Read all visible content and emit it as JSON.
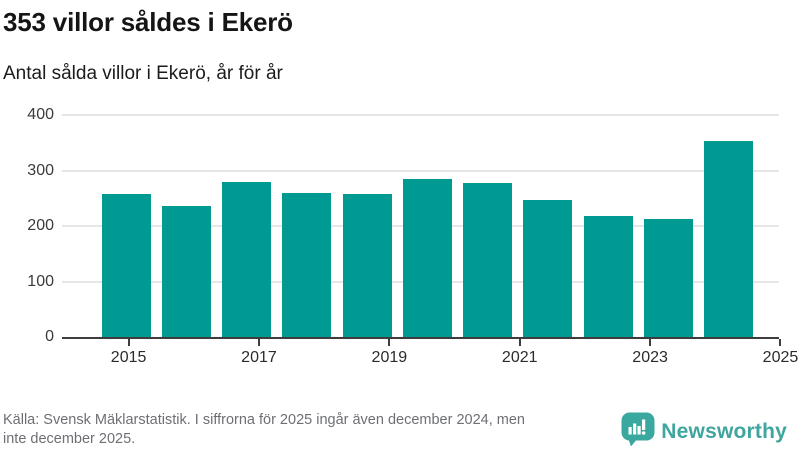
{
  "header": {
    "title": "353 villor såldes i Ekerö",
    "subtitle": "Antal sålda villor i Ekerö, år för år"
  },
  "chart_data": {
    "type": "bar",
    "categories": [
      "2015",
      "2016",
      "2017",
      "2018",
      "2019",
      "2020",
      "2021",
      "2022",
      "2023",
      "2024",
      "2025"
    ],
    "values": [
      257,
      236,
      280,
      260,
      258,
      284,
      277,
      247,
      218,
      213,
      353
    ],
    "title": "353 villor såldes i Ekerö",
    "subtitle": "Antal sålda villor i Ekerö, år för år",
    "xlabel": "",
    "ylabel": "",
    "ylim": [
      0,
      400
    ],
    "yticks": [
      0,
      100,
      200,
      300,
      400
    ],
    "xtick_labels": [
      "2015",
      "2017",
      "2019",
      "2021",
      "2023",
      "2025"
    ],
    "bar_color": "#009a92",
    "grid": true,
    "legend_position": "none"
  },
  "footer": {
    "source_lines": [
      "Källa: Svensk Mäklarstatistik. I siffrorna för 2025 ingår även december 2024, men",
      "inte december 2025."
    ]
  },
  "branding": {
    "logo_text": "Newsworthy",
    "logo_icon": "speech-bubble-bar-chart-icon",
    "logo_color": "#3fa59e",
    "logo_bubble_color": "#3ba89f"
  },
  "colors": {
    "bar": "#009a92",
    "axis": "#3d3d3d",
    "gridline": "#e6e6e6",
    "title_text": "#151515",
    "source_text": "#6d6f75"
  }
}
